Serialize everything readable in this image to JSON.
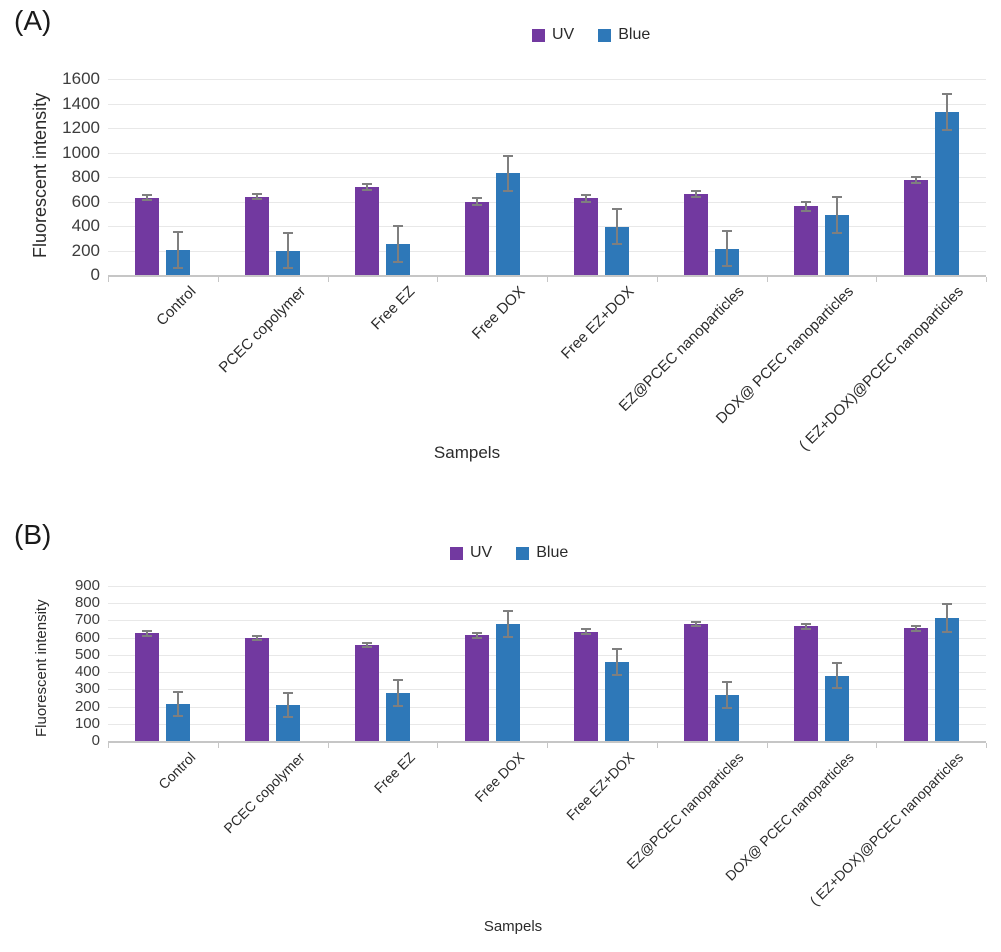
{
  "figure": {
    "panels": [
      {
        "label": "(A)"
      },
      {
        "label": "(B)"
      }
    ]
  },
  "chart_data": [
    {
      "type": "bar",
      "panel": "A",
      "title": "",
      "xlabel": "Sampels",
      "ylabel": "Fluorescent intensity",
      "ylim": [
        0,
        1600
      ],
      "ytick_step": 200,
      "grid": true,
      "legend_position": "top-center",
      "grid_color": "#e8e8e8",
      "axis_color": "#c6c6c6",
      "error_bar_color": "#7f7f7f",
      "categories": [
        "Control",
        "PCEC copolymer",
        "Free EZ",
        "Free DOX",
        "Free EZ+DOX",
        "EZ@PCEC nanoparticles",
        "DOX@ PCEC nanoparticles",
        "( EZ+DOX)@PCEC nanoparticles"
      ],
      "series": [
        {
          "name": "UV",
          "color": "#7239a0",
          "values": [
            630,
            640,
            720,
            600,
            625,
            660,
            560,
            775
          ],
          "errors": [
            20,
            20,
            25,
            30,
            25,
            25,
            40,
            25
          ]
        },
        {
          "name": "Blue",
          "color": "#2e78b8",
          "values": [
            205,
            200,
            255,
            830,
            395,
            215,
            490,
            1330
          ],
          "errors": [
            145,
            140,
            145,
            145,
            140,
            145,
            145,
            145
          ]
        }
      ]
    },
    {
      "type": "bar",
      "panel": "B",
      "title": "",
      "xlabel": "Sampels",
      "ylabel": "Fluorescent intensity",
      "ylim": [
        0,
        900
      ],
      "ytick_step": 100,
      "grid": true,
      "legend_position": "top-center",
      "grid_color": "#e8e8e8",
      "axis_color": "#c6c6c6",
      "error_bar_color": "#7f7f7f",
      "categories": [
        "Control",
        "PCEC copolymer",
        "Free EZ",
        "Free DOX",
        "Free EZ+DOX",
        "EZ@PCEC nanoparticles",
        "DOX@ PCEC nanoparticles",
        "( EZ+DOX)@PCEC nanoparticles"
      ],
      "series": [
        {
          "name": "UV",
          "color": "#7239a0",
          "values": [
            625,
            600,
            555,
            615,
            635,
            680,
            665,
            655
          ],
          "errors": [
            15,
            12,
            12,
            15,
            15,
            12,
            12,
            15
          ]
        },
        {
          "name": "Blue",
          "color": "#2e78b8",
          "values": [
            215,
            210,
            280,
            680,
            460,
            265,
            380,
            715
          ],
          "errors": [
            70,
            70,
            75,
            75,
            75,
            75,
            75,
            80
          ]
        }
      ]
    }
  ]
}
